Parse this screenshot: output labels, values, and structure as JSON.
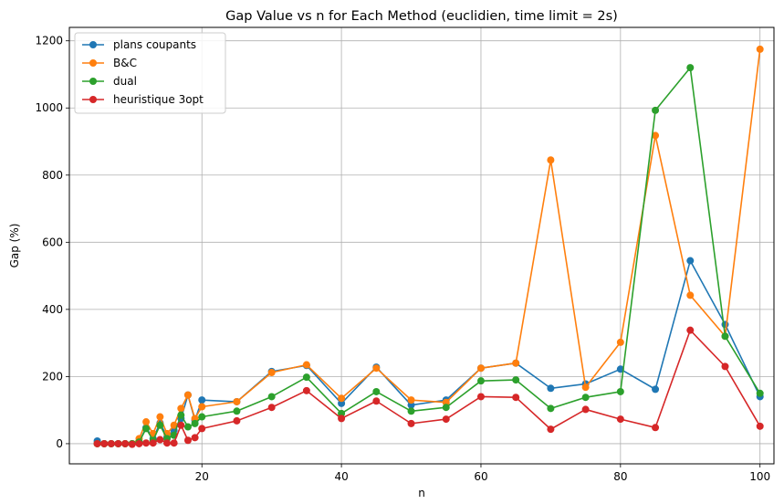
{
  "chart_data": {
    "type": "line",
    "title": "Gap Value vs n for Each Method (euclidien, time limit = 2s)",
    "xlabel": "n",
    "ylabel": "Gap (%)",
    "xlim": [
      1,
      102
    ],
    "ylim": [
      -60,
      1240
    ],
    "xticks": [
      20,
      40,
      60,
      80,
      100
    ],
    "yticks": [
      0,
      200,
      400,
      600,
      800,
      1000,
      1200
    ],
    "grid": true,
    "legend_position": "top-left",
    "series": [
      {
        "name": "plans coupants",
        "color": "#1f77b4",
        "x": [
          5,
          6,
          7,
          8,
          9,
          10,
          11,
          12,
          13,
          14,
          15,
          16,
          17,
          18,
          19,
          20,
          25,
          30,
          35,
          40,
          45,
          50,
          55,
          60,
          65,
          70,
          75,
          80,
          85,
          90,
          95,
          100
        ],
        "y": [
          8,
          0,
          0,
          0,
          0,
          0,
          5,
          48,
          15,
          62,
          20,
          40,
          75,
          145,
          70,
          130,
          125,
          215,
          233,
          120,
          228,
          115,
          130,
          225,
          240,
          165,
          178,
          222,
          162,
          545,
          355,
          140
        ]
      },
      {
        "name": "B&C",
        "color": "#ff7f0e",
        "x": [
          5,
          6,
          7,
          8,
          9,
          10,
          11,
          12,
          13,
          14,
          15,
          16,
          17,
          18,
          19,
          20,
          25,
          30,
          35,
          40,
          45,
          50,
          55,
          60,
          65,
          70,
          75,
          80,
          85,
          90,
          95,
          100
        ],
        "y": [
          0,
          0,
          0,
          0,
          0,
          0,
          15,
          65,
          30,
          80,
          30,
          55,
          105,
          145,
          75,
          110,
          125,
          212,
          235,
          135,
          225,
          130,
          123,
          225,
          240,
          845,
          168,
          302,
          918,
          442,
          320,
          1175
        ]
      },
      {
        "name": "dual",
        "color": "#2ca02c",
        "x": [
          5,
          6,
          7,
          8,
          9,
          10,
          11,
          12,
          13,
          14,
          15,
          16,
          17,
          18,
          19,
          20,
          25,
          30,
          35,
          40,
          45,
          50,
          55,
          60,
          65,
          70,
          75,
          80,
          85,
          90,
          95,
          100
        ],
        "y": [
          0,
          0,
          0,
          0,
          0,
          0,
          5,
          45,
          10,
          55,
          15,
          25,
          85,
          50,
          60,
          80,
          97,
          140,
          198,
          90,
          155,
          97,
          108,
          187,
          190,
          105,
          138,
          155,
          993,
          1120,
          320,
          150
        ]
      },
      {
        "name": "heuristique 3opt",
        "color": "#d62728",
        "x": [
          5,
          6,
          7,
          8,
          9,
          10,
          11,
          12,
          13,
          14,
          15,
          16,
          17,
          18,
          19,
          20,
          25,
          30,
          35,
          40,
          45,
          50,
          55,
          60,
          65,
          70,
          75,
          80,
          85,
          90,
          95,
          100
        ],
        "y": [
          0,
          0,
          0,
          0,
          0,
          -2,
          0,
          2,
          2,
          12,
          2,
          2,
          55,
          10,
          18,
          45,
          68,
          108,
          158,
          75,
          127,
          60,
          73,
          140,
          138,
          43,
          102,
          73,
          48,
          338,
          230,
          52
        ]
      }
    ]
  }
}
